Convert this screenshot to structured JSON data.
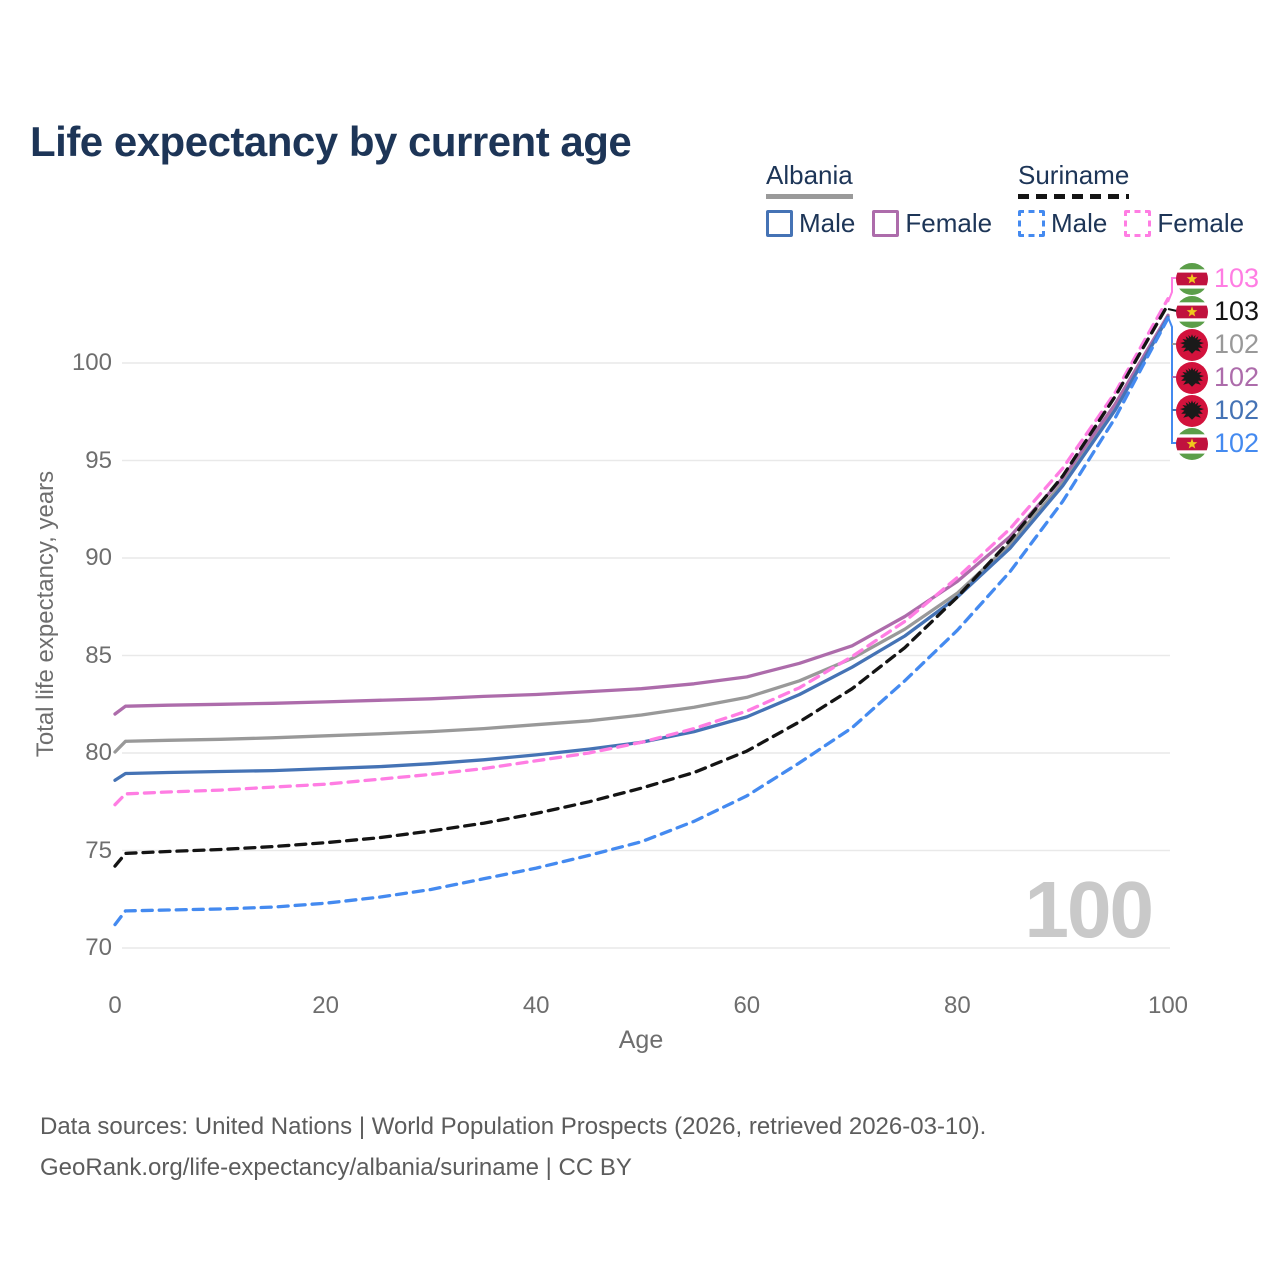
{
  "title": "Life expectancy by current age",
  "legend": {
    "groups": [
      {
        "country": "Albania",
        "line_style": "solid",
        "underline_color": "#9a9a9a",
        "items": [
          {
            "label": "Male",
            "color": "#4573b5",
            "dashed": false
          },
          {
            "label": "Female",
            "color": "#ad6cab",
            "dashed": false
          }
        ]
      },
      {
        "country": "Suriname",
        "line_style": "dashed",
        "underline_color": "#141414",
        "items": [
          {
            "label": "Male",
            "color": "#448af0",
            "dashed": true
          },
          {
            "label": "Female",
            "color": "#ff7de3",
            "dashed": true
          }
        ]
      }
    ]
  },
  "chart_data": {
    "type": "line",
    "title": "Life expectancy by current age",
    "xlabel": "Age",
    "ylabel": "Total life expectancy, years",
    "xlim": [
      0,
      100
    ],
    "ylim": [
      70,
      103.5
    ],
    "xticks": [
      0,
      20,
      40,
      60,
      80,
      100
    ],
    "yticks": [
      70,
      75,
      80,
      85,
      90,
      95,
      100
    ],
    "grid": "horizontal",
    "legend_position": "top-right",
    "x": [
      0,
      1,
      5,
      10,
      15,
      20,
      25,
      30,
      35,
      40,
      45,
      50,
      55,
      60,
      65,
      70,
      75,
      80,
      85,
      90,
      95,
      100
    ],
    "series": [
      {
        "name": "Albania Total",
        "country": "Albania",
        "sex": "total",
        "color": "#999999",
        "dashed": false,
        "values": [
          80.05,
          80.6,
          80.65,
          80.7,
          80.78,
          80.88,
          80.98,
          81.1,
          81.25,
          81.45,
          81.65,
          81.95,
          82.35,
          82.85,
          83.7,
          84.85,
          86.35,
          88.2,
          90.7,
          93.85,
          97.75,
          102.4
        ]
      },
      {
        "name": "Albania Female",
        "country": "Albania",
        "sex": "female",
        "color": "#ad6cab",
        "dashed": false,
        "values": [
          82.0,
          82.4,
          82.45,
          82.5,
          82.55,
          82.62,
          82.7,
          82.78,
          82.9,
          83.0,
          83.15,
          83.3,
          83.55,
          83.9,
          84.6,
          85.5,
          87.0,
          88.8,
          91.1,
          94.1,
          97.9,
          102.45
        ]
      },
      {
        "name": "Albania Male",
        "country": "Albania",
        "sex": "male",
        "color": "#4573b5",
        "dashed": false,
        "values": [
          78.6,
          78.95,
          79.0,
          79.05,
          79.1,
          79.2,
          79.3,
          79.45,
          79.65,
          79.9,
          80.2,
          80.55,
          81.1,
          81.85,
          83.0,
          84.4,
          86.0,
          88.0,
          90.5,
          93.7,
          97.6,
          102.35
        ]
      },
      {
        "name": "Suriname Female",
        "country": "Suriname",
        "sex": "female",
        "color": "#ff7de3",
        "dashed": true,
        "values": [
          77.35,
          77.9,
          78.0,
          78.1,
          78.25,
          78.4,
          78.65,
          78.9,
          79.2,
          79.6,
          80.0,
          80.55,
          81.25,
          82.15,
          83.35,
          84.95,
          86.75,
          89.0,
          91.5,
          94.6,
          98.5,
          103.3
        ]
      },
      {
        "name": "Suriname Total",
        "country": "Suriname",
        "sex": "total",
        "color": "#141414",
        "dashed": true,
        "values": [
          74.2,
          74.85,
          74.95,
          75.05,
          75.2,
          75.4,
          75.65,
          76.0,
          76.4,
          76.9,
          77.5,
          78.2,
          79.0,
          80.1,
          81.6,
          83.3,
          85.4,
          88.0,
          90.9,
          94.2,
          98.3,
          103.0
        ]
      },
      {
        "name": "Suriname Male",
        "country": "Suriname",
        "sex": "male",
        "color": "#448af0",
        "dashed": true,
        "values": [
          71.2,
          71.9,
          71.95,
          72.0,
          72.1,
          72.3,
          72.6,
          73.0,
          73.55,
          74.1,
          74.75,
          75.45,
          76.5,
          77.8,
          79.5,
          81.3,
          83.7,
          86.3,
          89.3,
          92.9,
          97.2,
          102.3
        ]
      }
    ]
  },
  "end_labels": [
    {
      "value": "103",
      "flag": "suriname",
      "series": "Suriname Female",
      "color": "#ff7de3"
    },
    {
      "value": "103",
      "flag": "suriname",
      "series": "Suriname Total",
      "color": "#141414"
    },
    {
      "value": "102",
      "flag": "albania",
      "series": "Albania Total",
      "color": "#999999"
    },
    {
      "value": "102",
      "flag": "albania",
      "series": "Albania Female",
      "color": "#ad6cab"
    },
    {
      "value": "102",
      "flag": "albania",
      "series": "Albania Male",
      "color": "#4573b5"
    },
    {
      "value": "102",
      "flag": "suriname",
      "series": "Suriname Male",
      "color": "#448af0"
    }
  ],
  "watermark": "100",
  "footer": {
    "line1": "Data sources: United Nations | World Population Prospects (2026, retrieved 2026-03-10).",
    "line2": "GeoRank.org/life-expectancy/albania/suriname | CC BY"
  },
  "colors": {
    "title_text": "#1d3557",
    "axis_text": "#6e6e6e",
    "gridline": "#e9e9e9",
    "watermark": "#c9c9c9",
    "footer_text": "#5c5c5c"
  }
}
